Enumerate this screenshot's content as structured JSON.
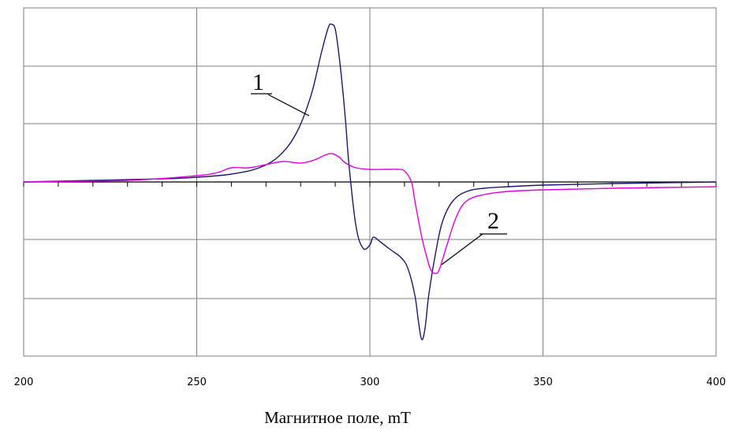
{
  "chart_data": {
    "type": "line",
    "title": "",
    "xlabel": "Магнитное поле, mT",
    "ylabel": "",
    "xlim": [
      200,
      400
    ],
    "ylim": [
      -1.0,
      1.1
    ],
    "grid": true,
    "x_ticks": [
      "200",
      "250",
      "300",
      "350",
      "400"
    ],
    "annotations": [
      "1",
      "2"
    ],
    "series": [
      {
        "name": "",
        "color": "#1a1a6e",
        "x": [
          200,
          220,
          240,
          250,
          260,
          268,
          274,
          279,
          283,
          286,
          288,
          289,
          290,
          291,
          292,
          293,
          294,
          296,
          298,
          300,
          301,
          303,
          306,
          309,
          311,
          313,
          314,
          315,
          316,
          317,
          319,
          321,
          324,
          328,
          333,
          340,
          350,
          370,
          400
        ],
        "y": [
          0.0,
          0.01,
          0.02,
          0.03,
          0.05,
          0.09,
          0.17,
          0.32,
          0.55,
          0.82,
          0.98,
          1.0,
          0.97,
          0.82,
          0.62,
          0.38,
          0.1,
          -0.28,
          -0.42,
          -0.4,
          -0.35,
          -0.38,
          -0.43,
          -0.48,
          -0.55,
          -0.72,
          -0.88,
          -1.0,
          -0.92,
          -0.72,
          -0.45,
          -0.25,
          -0.12,
          -0.06,
          -0.04,
          -0.03,
          -0.02,
          -0.01,
          0.0
        ]
      },
      {
        "name": "",
        "color": "#e000e0",
        "x": [
          200,
          230,
          250,
          256,
          260,
          265,
          270,
          275,
          280,
          284,
          287,
          289,
          291,
          293,
          296,
          300,
          305,
          308,
          310,
          312,
          313,
          315,
          317,
          318,
          319,
          320,
          322,
          325,
          328,
          333,
          340,
          350,
          370,
          400
        ],
        "y": [
          0.0,
          0.01,
          0.04,
          0.06,
          0.09,
          0.09,
          0.11,
          0.13,
          0.12,
          0.14,
          0.17,
          0.18,
          0.16,
          0.12,
          0.09,
          0.08,
          0.08,
          0.08,
          0.07,
          0.0,
          -0.12,
          -0.35,
          -0.52,
          -0.57,
          -0.58,
          -0.56,
          -0.42,
          -0.22,
          -0.12,
          -0.08,
          -0.06,
          -0.05,
          -0.04,
          -0.03
        ]
      }
    ]
  }
}
